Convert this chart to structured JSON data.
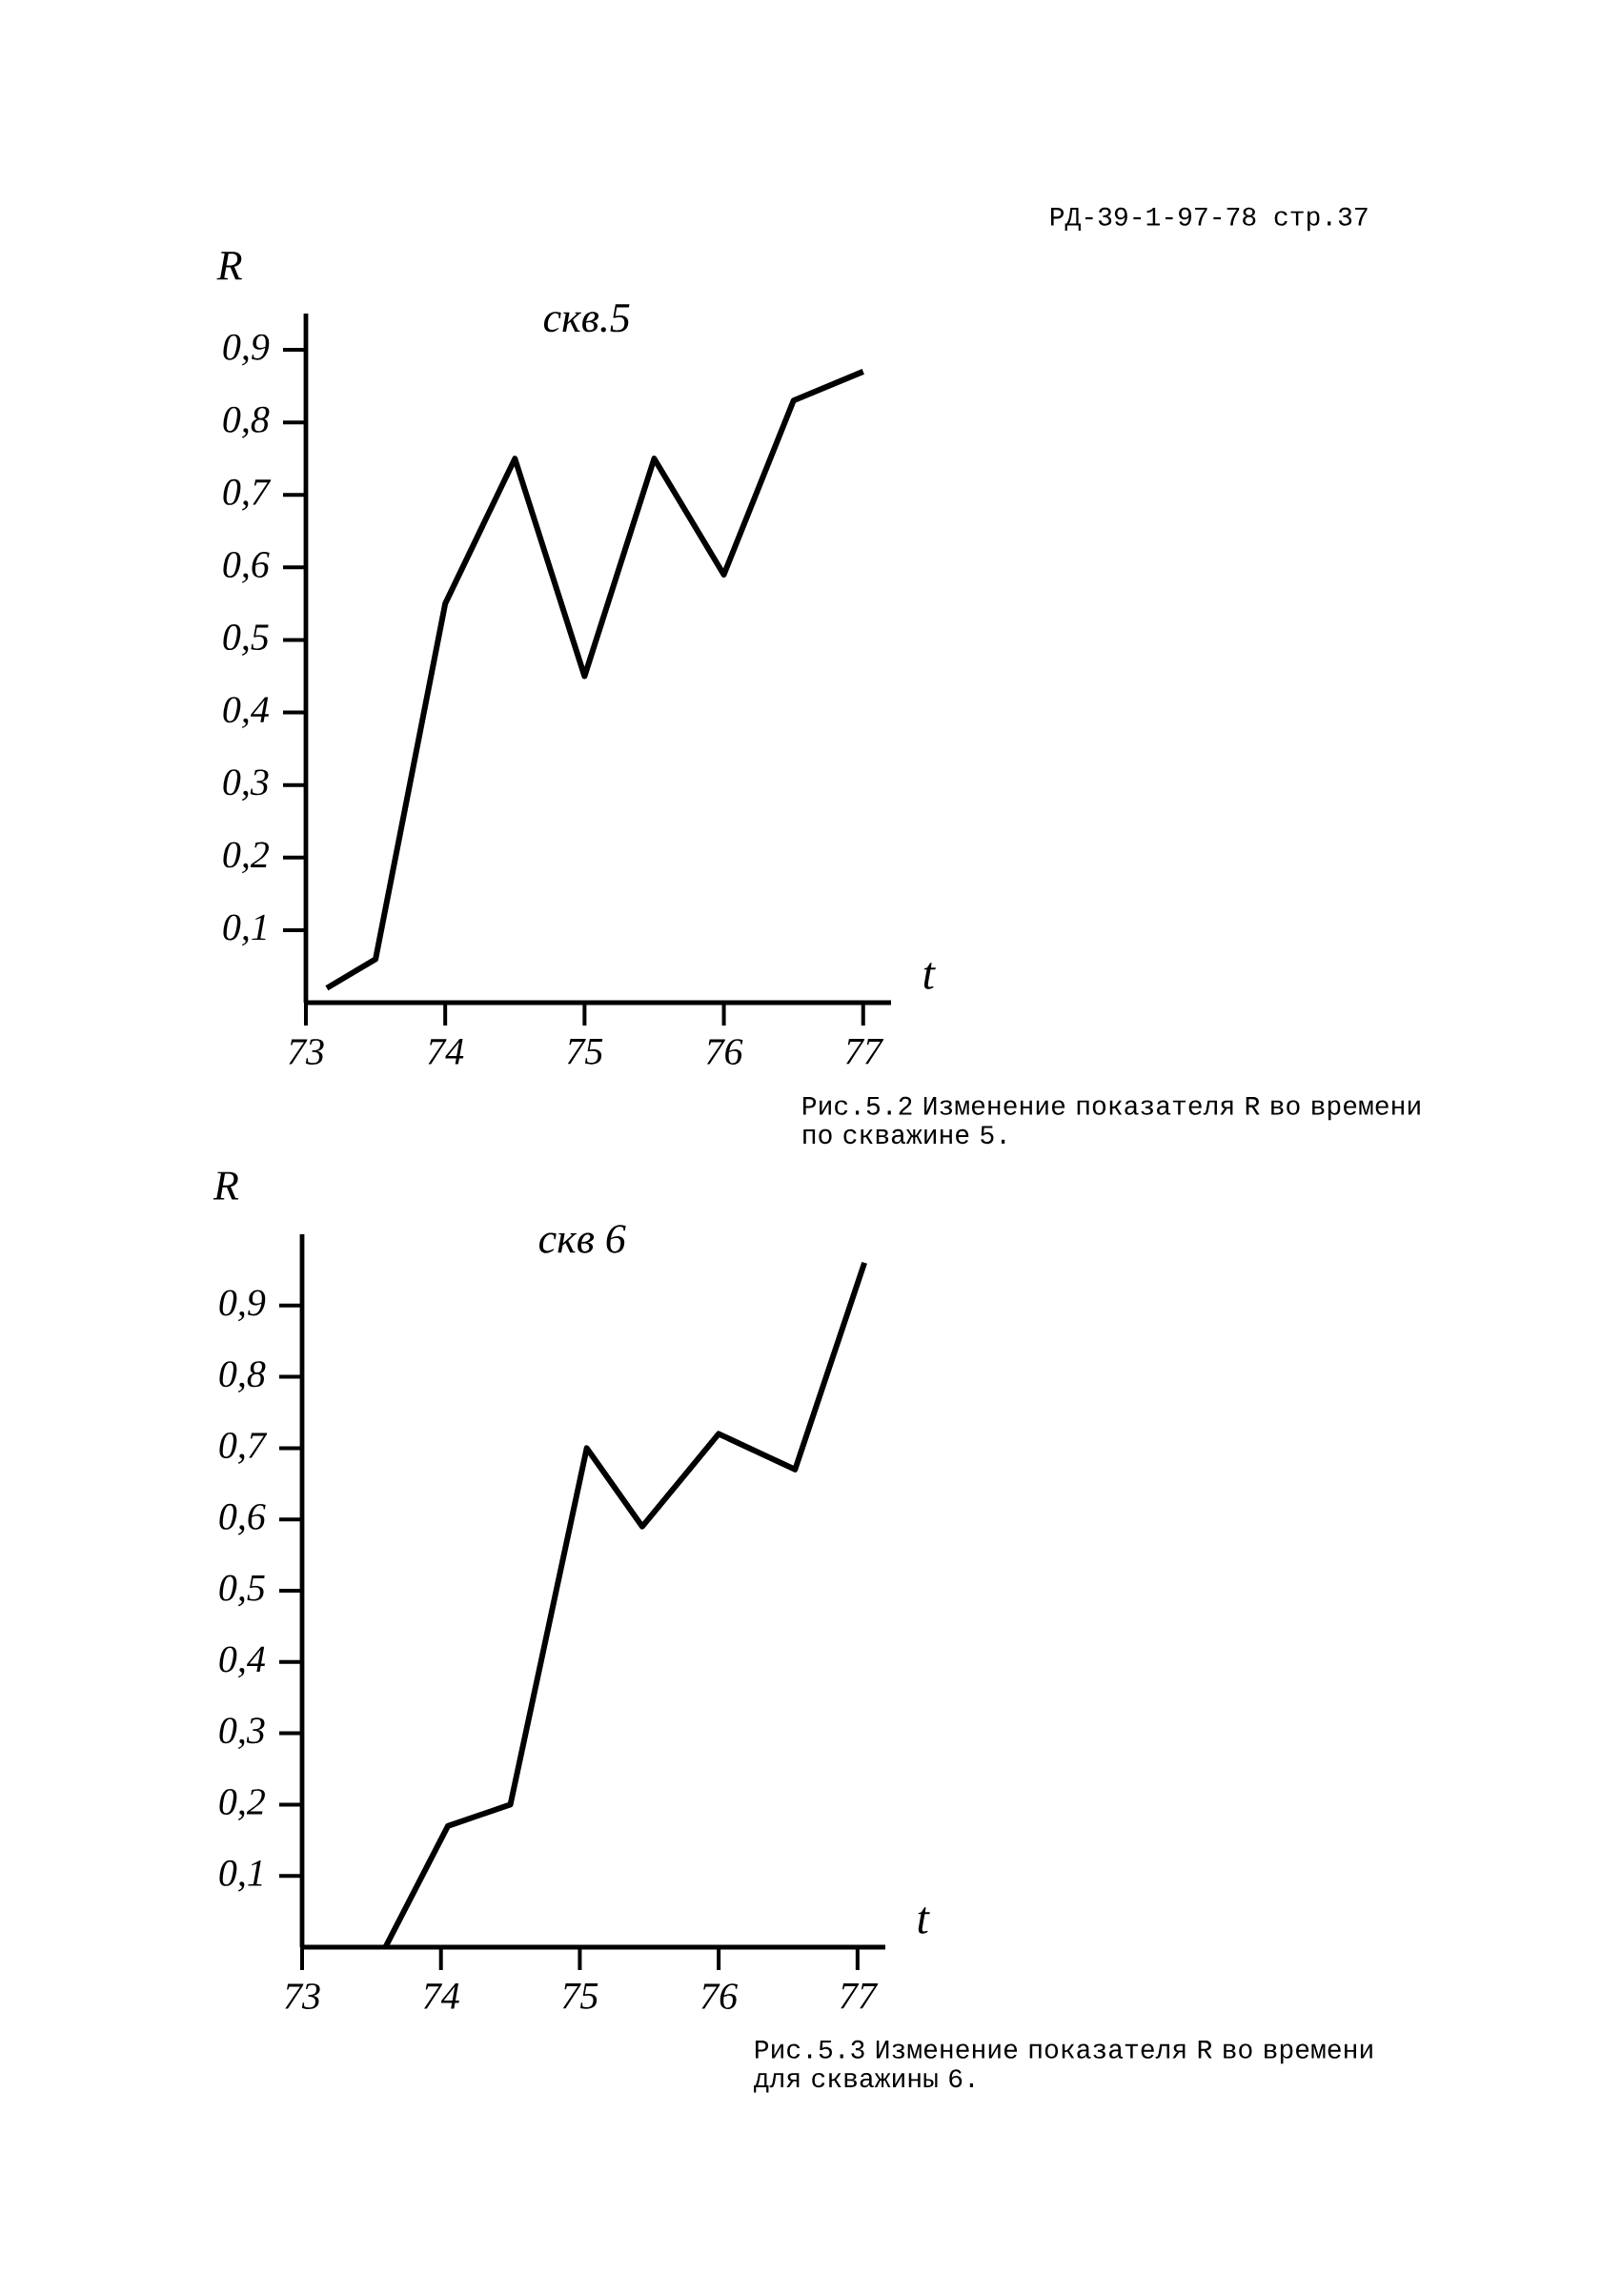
{
  "chart_data": [
    {
      "type": "line",
      "title": "скв.5",
      "xlabel": "t",
      "ylabel": "R",
      "color": "#000000",
      "marker": "none",
      "x": [
        73.15,
        73.5,
        74.0,
        74.5,
        75.0,
        75.5,
        76.0,
        76.5,
        77.0
      ],
      "values": [
        0.02,
        0.06,
        0.55,
        0.75,
        0.45,
        0.75,
        0.59,
        0.83,
        0.87
      ],
      "xlim": [
        73,
        77.2
      ],
      "ylim": [
        0,
        0.95
      ],
      "xticks": [
        73,
        74,
        75,
        76,
        77
      ],
      "yticks": [
        {
          "value": 0.1,
          "label": "0,1"
        },
        {
          "value": 0.2,
          "label": "0,2"
        },
        {
          "value": 0.3,
          "label": "0,3"
        },
        {
          "value": 0.4,
          "label": "0,4"
        },
        {
          "value": 0.5,
          "label": "0,5"
        },
        {
          "value": 0.6,
          "label": "0,6"
        },
        {
          "value": 0.7,
          "label": "0,7"
        },
        {
          "value": 0.8,
          "label": "0,8"
        },
        {
          "value": 0.9,
          "label": "0,9"
        }
      ],
      "annotations": [
        "РД-39-1-97-78 стр.37",
        "Рис.5.2 Изменение показателя R во времени по скважине 5."
      ]
    },
    {
      "type": "line",
      "title": "скв 6",
      "xlabel": "t",
      "ylabel": "R",
      "color": "#000000",
      "marker": "none",
      "x": [
        73.6,
        74.05,
        74.5,
        75.05,
        75.45,
        76.0,
        76.55,
        77.05
      ],
      "values": [
        0.0,
        0.17,
        0.2,
        0.7,
        0.59,
        0.72,
        0.67,
        0.96
      ],
      "xlim": [
        73,
        77.2
      ],
      "ylim": [
        0,
        1.0
      ],
      "xticks": [
        73,
        74,
        75,
        76,
        77
      ],
      "yticks": [
        {
          "value": 0.1,
          "label": "0,1"
        },
        {
          "value": 0.2,
          "label": "0,2"
        },
        {
          "value": 0.3,
          "label": "0,3"
        },
        {
          "value": 0.4,
          "label": "0,4"
        },
        {
          "value": 0.5,
          "label": "0,5"
        },
        {
          "value": 0.6,
          "label": "0,6"
        },
        {
          "value": 0.7,
          "label": "0,7"
        },
        {
          "value": 0.8,
          "label": "0,8"
        },
        {
          "value": 0.9,
          "label": "0,9"
        }
      ],
      "annotations": [
        "Рис.5.3 Изменение показателя R во времени для скважины 6."
      ]
    }
  ]
}
